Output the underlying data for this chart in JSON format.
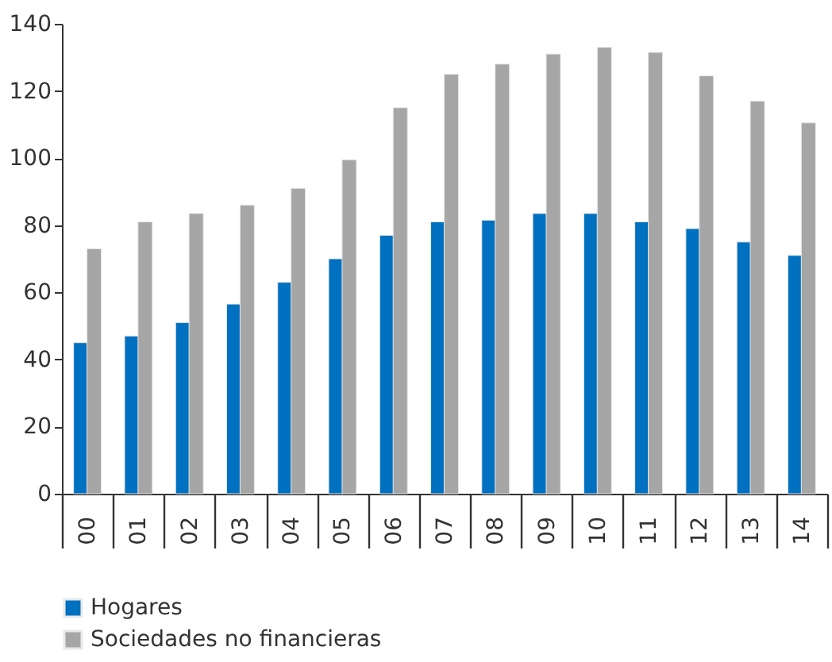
{
  "chart_data": {
    "type": "bar",
    "categories": [
      "00",
      "01",
      "02",
      "03",
      "04",
      "05",
      "06",
      "07",
      "08",
      "09",
      "10",
      "11",
      "12",
      "13",
      "14"
    ],
    "series": [
      {
        "name": "Hogares",
        "color": "#0070c0",
        "values": [
          45,
          47,
          51,
          56.5,
          63,
          70,
          77,
          81,
          81.5,
          83.5,
          83.5,
          81,
          79,
          75,
          71
        ]
      },
      {
        "name": "Sociedades no financieras",
        "color": "#a6a6a6",
        "values": [
          73,
          81,
          83.5,
          86,
          91,
          99.5,
          115,
          125,
          128,
          131,
          133,
          131.5,
          124.5,
          117,
          110.5
        ]
      }
    ],
    "ylim": [
      0,
      140
    ],
    "yticks": [
      0,
      20,
      40,
      60,
      80,
      100,
      120,
      140
    ],
    "grid": false,
    "legend": "bottom"
  }
}
